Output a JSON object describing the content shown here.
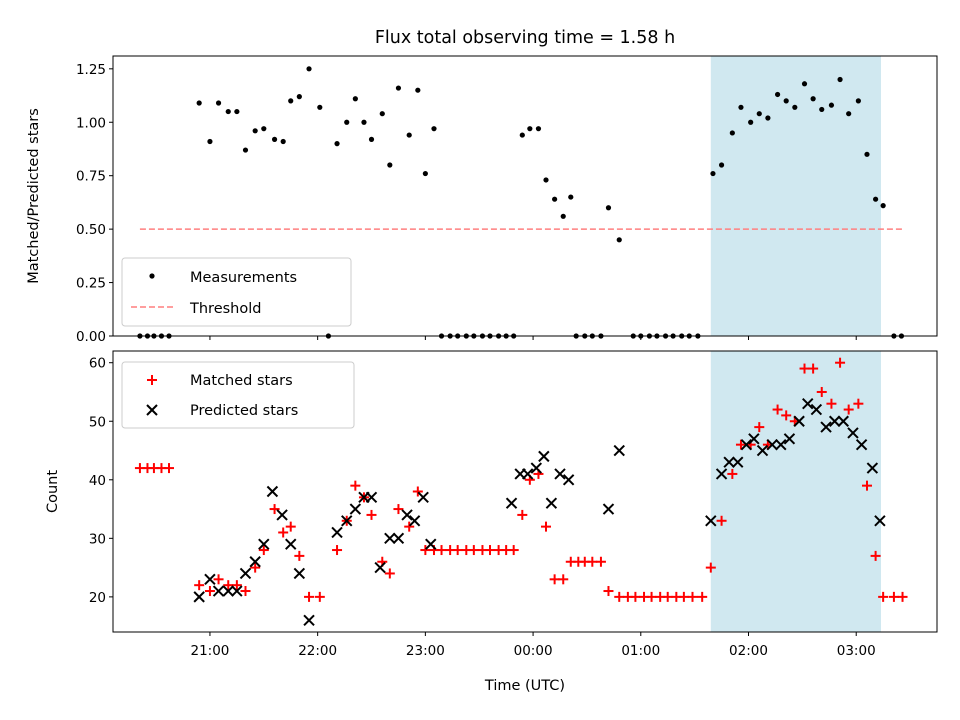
{
  "chart_data": [
    {
      "type": "scatter",
      "title": "Flux total observing time = 1.58 h",
      "xlabel": "",
      "ylabel": "Matched/Predicted stars",
      "x_unit": "hours since 00:00 UTC",
      "xlim": [
        -3.9,
        3.75
      ],
      "ylim": [
        0,
        1.31
      ],
      "yticks": [
        "0.00",
        "0.25",
        "0.50",
        "0.75",
        "1.00",
        "1.25"
      ],
      "highlight_span": [
        1.65,
        3.23
      ],
      "highlight_color": "#d0e8f0",
      "legend": {
        "position": "lower-left",
        "entries": [
          "Measurements",
          "Threshold"
        ]
      },
      "series": [
        {
          "name": "Measurements",
          "color": "#000000",
          "marker": "dot",
          "points": [
            [
              -3.65,
              0
            ],
            [
              -3.58,
              0
            ],
            [
              -3.52,
              0
            ],
            [
              -3.45,
              0
            ],
            [
              -3.38,
              0
            ],
            [
              -3.1,
              1.09
            ],
            [
              -3.0,
              0.91
            ],
            [
              -2.92,
              1.09
            ],
            [
              -2.83,
              1.05
            ],
            [
              -2.75,
              1.05
            ],
            [
              -2.67,
              0.87
            ],
            [
              -2.58,
              0.96
            ],
            [
              -2.5,
              0.97
            ],
            [
              -2.4,
              0.92
            ],
            [
              -2.32,
              0.91
            ],
            [
              -2.25,
              1.1
            ],
            [
              -2.17,
              1.12
            ],
            [
              -2.08,
              1.25
            ],
            [
              -1.98,
              1.07
            ],
            [
              -1.9,
              0
            ],
            [
              -1.82,
              0.9
            ],
            [
              -1.73,
              1.0
            ],
            [
              -1.65,
              1.11
            ],
            [
              -1.57,
              1.0
            ],
            [
              -1.5,
              0.92
            ],
            [
              -1.4,
              1.04
            ],
            [
              -1.33,
              0.8
            ],
            [
              -1.25,
              1.16
            ],
            [
              -1.15,
              0.94
            ],
            [
              -1.07,
              1.15
            ],
            [
              -1.0,
              0.76
            ],
            [
              -0.92,
              0.97
            ],
            [
              -0.85,
              0
            ],
            [
              -0.77,
              0
            ],
            [
              -0.7,
              0
            ],
            [
              -0.62,
              0
            ],
            [
              -0.55,
              0
            ],
            [
              -0.47,
              0
            ],
            [
              -0.4,
              0
            ],
            [
              -0.32,
              0
            ],
            [
              -0.25,
              0
            ],
            [
              -0.18,
              0
            ],
            [
              -0.1,
              0.94
            ],
            [
              -0.03,
              0.97
            ],
            [
              0.05,
              0.97
            ],
            [
              0.12,
              0.73
            ],
            [
              0.2,
              0.64
            ],
            [
              0.28,
              0.56
            ],
            [
              0.35,
              0.65
            ],
            [
              0.4,
              0
            ],
            [
              0.48,
              0
            ],
            [
              0.55,
              0
            ],
            [
              0.63,
              0
            ],
            [
              0.7,
              0.6
            ],
            [
              0.8,
              0.45
            ],
            [
              0.93,
              0
            ],
            [
              1.0,
              0
            ],
            [
              1.08,
              0
            ],
            [
              1.15,
              0
            ],
            [
              1.23,
              0
            ],
            [
              1.3,
              0
            ],
            [
              1.38,
              0
            ],
            [
              1.45,
              0
            ],
            [
              1.53,
              0
            ],
            [
              1.67,
              0.76
            ],
            [
              1.75,
              0.8
            ],
            [
              1.85,
              0.95
            ],
            [
              1.93,
              1.07
            ],
            [
              2.02,
              1.0
            ],
            [
              2.1,
              1.04
            ],
            [
              2.18,
              1.02
            ],
            [
              2.27,
              1.13
            ],
            [
              2.35,
              1.1
            ],
            [
              2.43,
              1.07
            ],
            [
              2.52,
              1.18
            ],
            [
              2.6,
              1.11
            ],
            [
              2.68,
              1.06
            ],
            [
              2.77,
              1.08
            ],
            [
              2.85,
              1.2
            ],
            [
              2.93,
              1.04
            ],
            [
              3.02,
              1.1
            ],
            [
              3.1,
              0.85
            ],
            [
              3.18,
              0.64
            ],
            [
              3.25,
              0.61
            ],
            [
              3.35,
              0
            ],
            [
              3.42,
              0
            ]
          ]
        },
        {
          "name": "Threshold",
          "color": "#ff7f7f",
          "style": "dashed",
          "y": 0.5,
          "x_range": [
            -3.65,
            3.45
          ]
        }
      ]
    },
    {
      "type": "scatter",
      "title": "",
      "xlabel": "Time (UTC)",
      "ylabel": "Count",
      "x_unit": "hours since 00:00 UTC",
      "xlim": [
        -3.9,
        3.75
      ],
      "ylim": [
        14,
        62
      ],
      "yticks": [
        "20",
        "30",
        "40",
        "50",
        "60"
      ],
      "xticks": [
        {
          "x": -3.0,
          "label": "21:00"
        },
        {
          "x": -2.0,
          "label": "22:00"
        },
        {
          "x": -1.0,
          "label": "23:00"
        },
        {
          "x": 0.0,
          "label": "00:00"
        },
        {
          "x": 1.0,
          "label": "01:00"
        },
        {
          "x": 2.0,
          "label": "02:00"
        },
        {
          "x": 3.0,
          "label": "03:00"
        }
      ],
      "highlight_span": [
        1.65,
        3.23
      ],
      "highlight_color": "#d0e8f0",
      "legend": {
        "position": "upper-left",
        "entries": [
          "Matched stars",
          "Predicted stars"
        ]
      },
      "series": [
        {
          "name": "Matched stars",
          "color": "#ff0000",
          "marker": "plus",
          "points": [
            [
              -3.65,
              42
            ],
            [
              -3.58,
              42
            ],
            [
              -3.52,
              42
            ],
            [
              -3.45,
              42
            ],
            [
              -3.38,
              42
            ],
            [
              -3.1,
              22
            ],
            [
              -3.0,
              21
            ],
            [
              -2.92,
              23
            ],
            [
              -2.83,
              22
            ],
            [
              -2.75,
              22
            ],
            [
              -2.67,
              21
            ],
            [
              -2.58,
              25
            ],
            [
              -2.5,
              28
            ],
            [
              -2.4,
              35
            ],
            [
              -2.32,
              31
            ],
            [
              -2.25,
              32
            ],
            [
              -2.17,
              27
            ],
            [
              -2.08,
              20
            ],
            [
              -1.98,
              20
            ],
            [
              -1.82,
              28
            ],
            [
              -1.73,
              33
            ],
            [
              -1.65,
              39
            ],
            [
              -1.57,
              37
            ],
            [
              -1.5,
              34
            ],
            [
              -1.4,
              26
            ],
            [
              -1.33,
              24
            ],
            [
              -1.25,
              35
            ],
            [
              -1.15,
              32
            ],
            [
              -1.07,
              38
            ],
            [
              -1.0,
              28
            ],
            [
              -0.92,
              28
            ],
            [
              -0.85,
              28
            ],
            [
              -0.77,
              28
            ],
            [
              -0.7,
              28
            ],
            [
              -0.62,
              28
            ],
            [
              -0.55,
              28
            ],
            [
              -0.47,
              28
            ],
            [
              -0.4,
              28
            ],
            [
              -0.32,
              28
            ],
            [
              -0.25,
              28
            ],
            [
              -0.18,
              28
            ],
            [
              -0.1,
              34
            ],
            [
              -0.03,
              40
            ],
            [
              0.05,
              41
            ],
            [
              0.12,
              32
            ],
            [
              0.2,
              23
            ],
            [
              0.28,
              23
            ],
            [
              0.35,
              26
            ],
            [
              0.42,
              26
            ],
            [
              0.48,
              26
            ],
            [
              0.55,
              26
            ],
            [
              0.63,
              26
            ],
            [
              0.7,
              21
            ],
            [
              0.8,
              20
            ],
            [
              0.88,
              20
            ],
            [
              0.95,
              20
            ],
            [
              1.03,
              20
            ],
            [
              1.1,
              20
            ],
            [
              1.18,
              20
            ],
            [
              1.25,
              20
            ],
            [
              1.33,
              20
            ],
            [
              1.4,
              20
            ],
            [
              1.48,
              20
            ],
            [
              1.57,
              20
            ],
            [
              1.65,
              25
            ],
            [
              1.75,
              33
            ],
            [
              1.85,
              41
            ],
            [
              1.93,
              46
            ],
            [
              2.02,
              46
            ],
            [
              2.1,
              49
            ],
            [
              2.18,
              46
            ],
            [
              2.27,
              52
            ],
            [
              2.35,
              51
            ],
            [
              2.43,
              50
            ],
            [
              2.52,
              59
            ],
            [
              2.6,
              59
            ],
            [
              2.68,
              55
            ],
            [
              2.77,
              53
            ],
            [
              2.85,
              60
            ],
            [
              2.93,
              52
            ],
            [
              3.02,
              53
            ],
            [
              3.1,
              39
            ],
            [
              3.18,
              27
            ],
            [
              3.25,
              20
            ],
            [
              3.35,
              20
            ],
            [
              3.43,
              20
            ]
          ]
        },
        {
          "name": "Predicted stars",
          "color": "#000000",
          "marker": "x",
          "points": [
            [
              -3.1,
              20
            ],
            [
              -3.0,
              23
            ],
            [
              -2.92,
              21
            ],
            [
              -2.83,
              21
            ],
            [
              -2.75,
              21
            ],
            [
              -2.67,
              24
            ],
            [
              -2.58,
              26
            ],
            [
              -2.5,
              29
            ],
            [
              -2.42,
              38
            ],
            [
              -2.33,
              34
            ],
            [
              -2.25,
              29
            ],
            [
              -2.17,
              24
            ],
            [
              -2.08,
              16
            ],
            [
              -1.82,
              31
            ],
            [
              -1.73,
              33
            ],
            [
              -1.65,
              35
            ],
            [
              -1.57,
              37
            ],
            [
              -1.5,
              37
            ],
            [
              -1.42,
              25
            ],
            [
              -1.33,
              30
            ],
            [
              -1.25,
              30
            ],
            [
              -1.17,
              34
            ],
            [
              -1.1,
              33
            ],
            [
              -1.02,
              37
            ],
            [
              -0.95,
              29
            ],
            [
              -0.2,
              36
            ],
            [
              -0.12,
              41
            ],
            [
              -0.05,
              41
            ],
            [
              0.03,
              42
            ],
            [
              0.1,
              44
            ],
            [
              0.17,
              36
            ],
            [
              0.25,
              41
            ],
            [
              0.33,
              40
            ],
            [
              0.7,
              35
            ],
            [
              0.8,
              45
            ],
            [
              1.65,
              33
            ],
            [
              1.75,
              41
            ],
            [
              1.82,
              43
            ],
            [
              1.9,
              43
            ],
            [
              1.98,
              46
            ],
            [
              2.05,
              47
            ],
            [
              2.13,
              45
            ],
            [
              2.22,
              46
            ],
            [
              2.3,
              46
            ],
            [
              2.38,
              47
            ],
            [
              2.47,
              50
            ],
            [
              2.55,
              53
            ],
            [
              2.63,
              52
            ],
            [
              2.72,
              49
            ],
            [
              2.8,
              50
            ],
            [
              2.88,
              50
            ],
            [
              2.97,
              48
            ],
            [
              3.05,
              46
            ],
            [
              3.15,
              42
            ],
            [
              3.22,
              33
            ]
          ]
        }
      ]
    }
  ]
}
